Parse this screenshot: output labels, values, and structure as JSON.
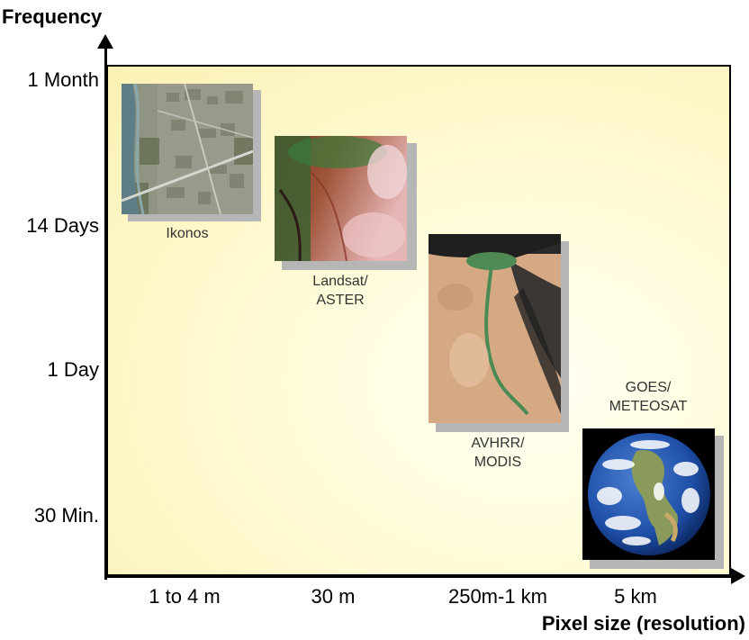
{
  "axes": {
    "y_title": "Frequency",
    "x_title": "Pixel size (resolution)",
    "y_ticks": [
      "1 Month",
      "14 Days",
      "1 Day",
      "30 Min."
    ],
    "x_ticks": [
      "1 to 4 m",
      "30 m",
      "250m-1 km",
      "5 km"
    ]
  },
  "sensors": [
    {
      "label_line1": "Ikonos",
      "label_line2": "",
      "image": "urban-river-aerial"
    },
    {
      "label_line1": "Landsat/",
      "label_line2": "ASTER",
      "image": "red-false-color-landscape"
    },
    {
      "label_line1": "AVHRR/",
      "label_line2": "MODIS",
      "image": "nile-river-desert"
    },
    {
      "label_line1": "GOES/",
      "label_line2": "METEOSAT",
      "image": "earth-globe"
    }
  ],
  "colors": {
    "panel_background": "#fdf6c8",
    "axes": "#000000"
  }
}
